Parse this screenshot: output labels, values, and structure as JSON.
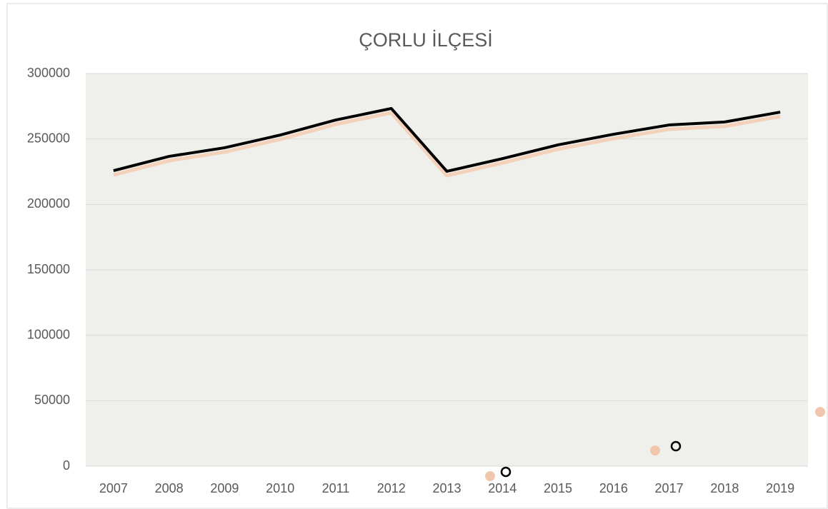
{
  "chart_data": {
    "type": "line",
    "title": "ÇORLU İLÇESİ",
    "categories": [
      "2007",
      "2008",
      "2009",
      "2010",
      "2011",
      "2012",
      "2013",
      "2014",
      "2015",
      "2016",
      "2017",
      "2018",
      "2019"
    ],
    "series": [
      {
        "color": "#000000",
        "values": [
          225800,
          236700,
          243300,
          253000,
          264500,
          273300,
          225300,
          235000,
          245500,
          253600,
          260700,
          263000,
          270500
        ]
      }
    ],
    "ylim": [
      0,
      300000
    ],
    "yticks": [
      0,
      50000,
      100000,
      150000,
      200000,
      250000,
      300000
    ],
    "grid": true
  }
}
